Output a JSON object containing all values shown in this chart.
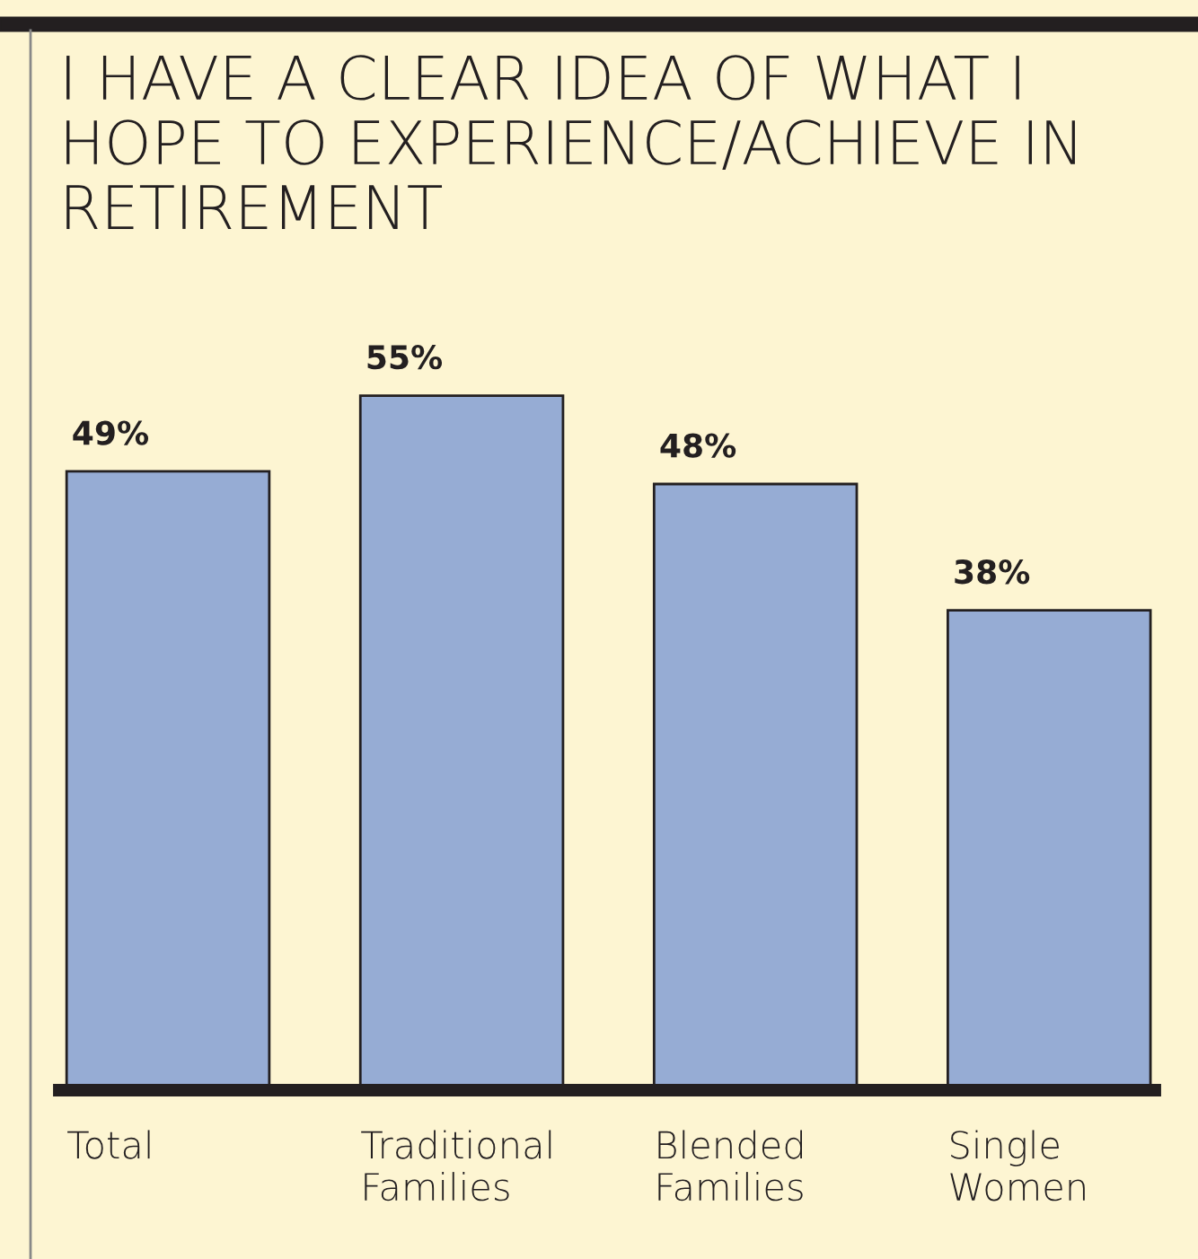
{
  "chart_data": {
    "type": "bar",
    "title": "I HAVE A CLEAR IDEA OF WHAT I HOPE TO EXPERIENCE/ACHIEVE IN RETIREMENT",
    "categories": [
      "Total",
      "Traditional Families",
      "Blended Families",
      "Single Women"
    ],
    "values": [
      49,
      55,
      48,
      38
    ],
    "value_labels": [
      "49%",
      "55%",
      "48%",
      "38%"
    ],
    "color": "#96acd4"
  }
}
